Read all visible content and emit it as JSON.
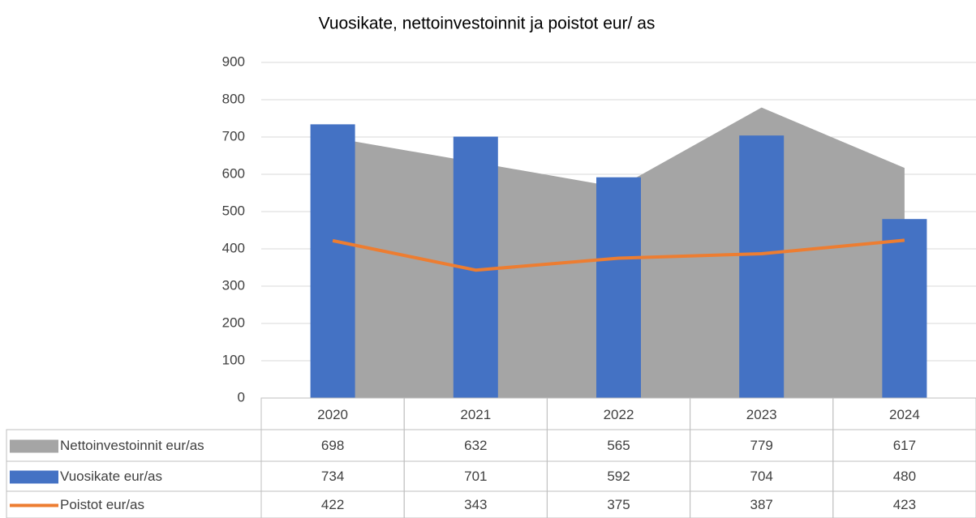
{
  "chart_data": {
    "type": "combo",
    "title": "Vuosikate, nettoinvestoinnit ja poistot eur/ as",
    "categories": [
      "2020",
      "2021",
      "2022",
      "2023",
      "2024"
    ],
    "series": [
      {
        "name": "Nettoinvestoinnit eur/as",
        "type": "area",
        "color": "#a5a5a5",
        "values": [
          698,
          632,
          565,
          779,
          617
        ]
      },
      {
        "name": "Vuosikate eur/as",
        "type": "bar",
        "color": "#4472c4",
        "values": [
          734,
          701,
          592,
          704,
          480
        ]
      },
      {
        "name": "Poistot eur/as",
        "type": "line",
        "color": "#ed7d31",
        "values": [
          422,
          343,
          375,
          387,
          423
        ]
      }
    ],
    "ylim": [
      0,
      900
    ],
    "yticks": [
      0,
      100,
      200,
      300,
      400,
      500,
      600,
      700,
      800,
      900
    ],
    "grid": true,
    "legend": "data-table"
  }
}
